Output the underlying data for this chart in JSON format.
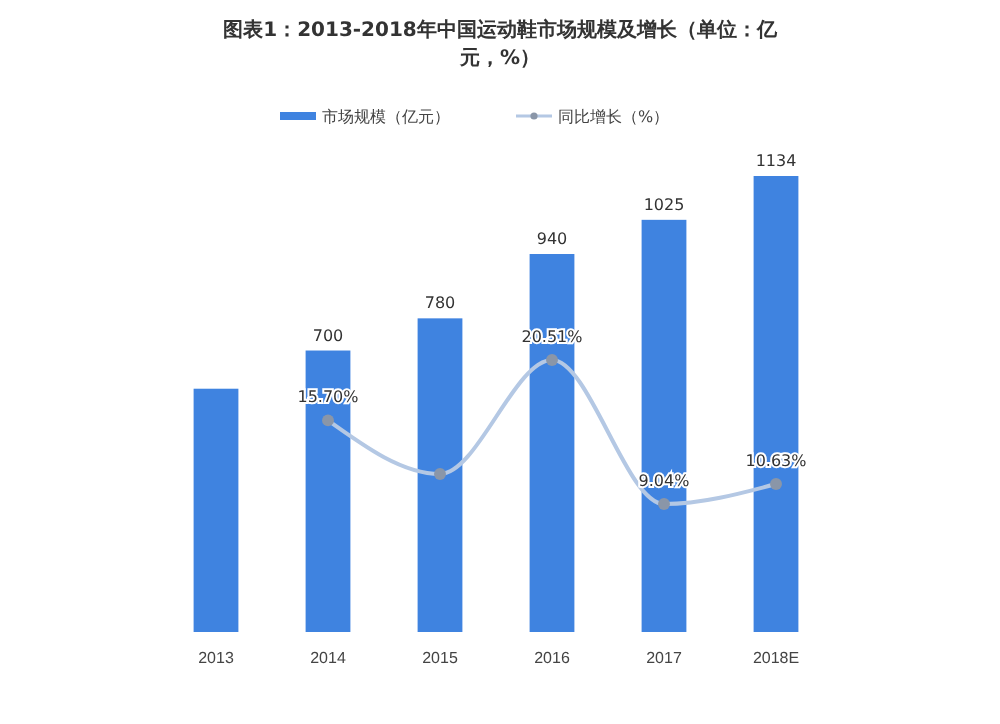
{
  "chart_data": {
    "type": "bar",
    "title": "图表1：2013-2018年中国运动鞋市场规模及增长（单位：亿元，%）",
    "categories": [
      "2013",
      "2014",
      "2015",
      "2016",
      "2017",
      "2018E"
    ],
    "series": [
      {
        "name": "市场规模（亿元）",
        "color": "#3f83e0",
        "values": [
          605,
          700,
          780,
          940,
          1025,
          1134
        ],
        "value_labels": [
          null,
          "700",
          "780",
          "940",
          "1025",
          "1134"
        ]
      },
      {
        "name": "同比增长（%）",
        "type": "line",
        "axis": "y2",
        "color": "#b4c8e4",
        "marker": "circle",
        "values": [
          null,
          15.7,
          11.43,
          20.51,
          9.04,
          10.63
        ],
        "value_labels": [
          null,
          "15.70%",
          null,
          "20.51%",
          "9.04%",
          "10.63%"
        ]
      }
    ],
    "legend": "top",
    "tick_labels": "x"
  }
}
